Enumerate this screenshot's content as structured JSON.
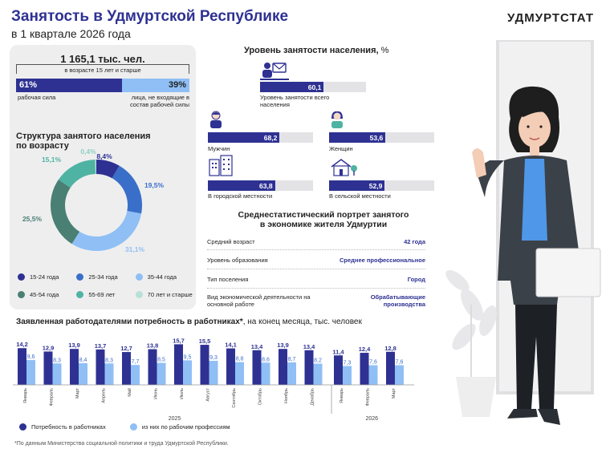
{
  "header": {
    "title": "Занятость в Удмуртской Республике",
    "subtitle": "в 1 квартале 2026 года",
    "brand": "УДМУРТСТАТ"
  },
  "labor": {
    "total": "1 165,1 тыс. чел.",
    "total_sub": "в возрасте 15 лет и старше",
    "labor_force_pct": "61%",
    "labor_force_label": "рабочая сила",
    "labor_force_value": 61,
    "not_labor_pct": "39%",
    "not_labor_label": "лица, не входящие в состав рабочей силы",
    "not_labor_value": 39
  },
  "age_structure": {
    "title": "Структура занятого населения по возрасту",
    "legend": [
      "15-24 года",
      "25-34 года",
      "35-44 года",
      "45-54 года",
      "55-69 лет",
      "70 лет и старше"
    ],
    "colors": [
      "#2e3192",
      "#3a6fc9",
      "#8fbff5",
      "#4a7f73",
      "#4fb3a3",
      "#b9e0d6"
    ]
  },
  "employment": {
    "title": "Уровень занятости населения,",
    "title_unit": "%",
    "total_label": "Уровень занятости всего населения",
    "total_value": "60,1",
    "men_label": "Мужчин",
    "men_value": "68,2",
    "women_label": "Женщин",
    "women_value": "53,6",
    "urban_label": "В городской местности",
    "urban_value": "63,8",
    "rural_label": "В сельской местности",
    "rural_value": "52,9",
    "values": [
      60.1,
      68.2,
      53.6,
      63.8,
      52.9
    ]
  },
  "portrait": {
    "title_line1": "Среднестатистический портрет занятого",
    "title_line2": "в экономике жителя Удмуртии",
    "rows": [
      {
        "label": "Средний возраст",
        "value": "42 года"
      },
      {
        "label": "Уровень образования",
        "value": "Среднее профессиональное"
      },
      {
        "label": "Тип поселения",
        "value": "Город"
      },
      {
        "label": "Вид экономической деятельности на основной работе",
        "value": "Обрабатывающие производства"
      }
    ]
  },
  "demand": {
    "title_bold": "Заявленная работодателями потребность в работниках*",
    "title_rest": ", на конец месяца, тыс. человек",
    "legend_total": "Потребность в работниках",
    "legend_workers": "из них по рабочим профессиям",
    "year1": "2025",
    "year2": "2026"
  },
  "footnote": "*По данным Министерства социальной политики и труда Удмуртской Республики.",
  "chart_data": [
    {
      "type": "pie",
      "title": "Структура занятого населения по возрасту",
      "categories": [
        "15-24 года",
        "25-34 года",
        "35-44 года",
        "45-54 года",
        "55-69 лет",
        "70 лет и старше"
      ],
      "values": [
        8.4,
        19.5,
        31.1,
        25.5,
        15.1,
        0.4
      ],
      "labels": [
        "8,4%",
        "19,5%",
        "31,1%",
        "25,5%",
        "15,1%",
        "0,4%"
      ]
    },
    {
      "type": "bar",
      "title": "Заявленная работодателями потребность в работниках*, на конец месяца, тыс. человек",
      "categories": [
        "Январь",
        "Февраль",
        "Март",
        "Апрель",
        "Май",
        "Июнь",
        "Июль",
        "Август",
        "Сентябрь",
        "Октябрь",
        "Ноябрь",
        "Декабрь",
        "Январь",
        "Февраль",
        "Март"
      ],
      "series": [
        {
          "name": "Потребность в работниках",
          "values": [
            14.2,
            12.9,
            13.9,
            13.7,
            12.7,
            13.8,
            15.7,
            15.5,
            14.1,
            13.4,
            13.9,
            13.4,
            11.4,
            12.4,
            12.8
          ],
          "labels": [
            "14,2",
            "12,9",
            "13,9",
            "13,7",
            "12,7",
            "13,8",
            "15,7",
            "15,5",
            "14,1",
            "13,4",
            "13,9",
            "13,4",
            "11,4",
            "12,4",
            "12,8"
          ]
        },
        {
          "name": "из них по рабочим профессиям",
          "values": [
            9.6,
            8.3,
            8.4,
            8.3,
            7.7,
            8.5,
            9.5,
            9.3,
            8.8,
            8.6,
            8.7,
            8.2,
            7.3,
            7.6,
            7.6
          ],
          "labels": [
            "9,6",
            "8,3",
            "8,4",
            "8,3",
            "7,7",
            "8,5",
            "9,5",
            "9,3",
            "8,8",
            "8,6",
            "8,7",
            "8,2",
            "7,3",
            "7,6",
            "7,6"
          ]
        }
      ],
      "groups": [
        {
          "label": "2025",
          "count": 12
        },
        {
          "label": "2026",
          "count": 3
        }
      ]
    }
  ]
}
